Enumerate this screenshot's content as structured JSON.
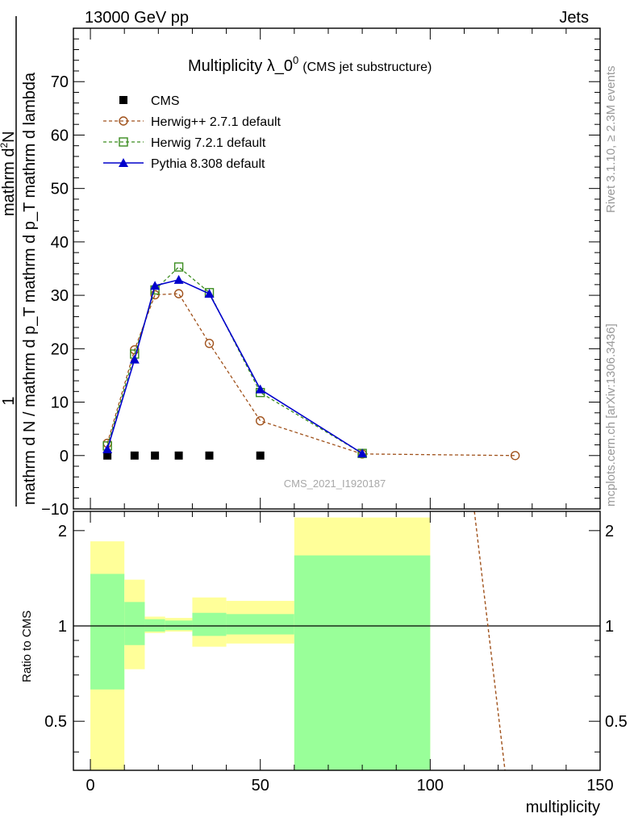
{
  "header": {
    "left": "13000 GeV pp",
    "right": "Jets"
  },
  "side_labels": {
    "rivet": "Rivet 3.1.10, ≥ 2.3M events",
    "mcplots": "mcplots.cern.ch [arXiv:1306.3436]"
  },
  "chart_data": {
    "type": "line",
    "title": "Multiplicity λ_0",
    "title_sup": "0",
    "title_suffix": "(CMS jet substructure)",
    "watermark": "CMS_2021_I1920187",
    "ylabel_top": "1",
    "ylabel_bottom": "mathrm d N / mathrm d p_T mathrm d p_T mathrm d lambda",
    "ylabel_num": "mathrm d",
    "ylabel_num_sup": "2",
    "ylabel_num_end": "N",
    "xlabel": "multiplicity",
    "ratio_ylabel": "Ratio to CMS",
    "xlim": [
      -5,
      150
    ],
    "ylim": [
      -10,
      80
    ],
    "ratio_ylim": [
      0.35,
      2.3
    ],
    "ratio_scale": "log",
    "x_ticks": [
      0,
      50,
      100,
      150
    ],
    "y_ticks": [
      -10,
      0,
      10,
      20,
      30,
      40,
      50,
      60,
      70
    ],
    "ratio_ticks": [
      0.5,
      1,
      2
    ],
    "legend_position": "top-left",
    "series": [
      {
        "name": "CMS",
        "color": "#000000",
        "marker": "filled-square",
        "line": "none",
        "points": [
          [
            5,
            0
          ],
          [
            13,
            0
          ],
          [
            19,
            0
          ],
          [
            26,
            0
          ],
          [
            35,
            0
          ],
          [
            50,
            0
          ]
        ]
      },
      {
        "name": "Herwig++ 2.7.1 default",
        "color": "#a0521c",
        "marker": "open-circle",
        "line": "dashed",
        "points": [
          [
            5,
            2.3
          ],
          [
            13,
            19.8
          ],
          [
            19,
            30.1
          ],
          [
            26,
            30.3
          ],
          [
            35,
            21.0
          ],
          [
            50,
            6.5
          ],
          [
            80,
            0.3
          ],
          [
            125,
            0.0
          ]
        ]
      },
      {
        "name": "Herwig 7.2.1 default",
        "color": "#3a8c1e",
        "marker": "open-square",
        "line": "dashed",
        "points": [
          [
            5,
            1.8
          ],
          [
            13,
            19.0
          ],
          [
            19,
            31.0
          ],
          [
            26,
            35.3
          ],
          [
            35,
            30.5
          ],
          [
            50,
            11.8
          ],
          [
            80,
            0.4
          ]
        ]
      },
      {
        "name": "Pythia 8.308 default",
        "color": "#0000cc",
        "marker": "filled-triangle",
        "line": "solid",
        "points": [
          [
            5,
            1.2
          ],
          [
            13,
            18.0
          ],
          [
            19,
            31.8
          ],
          [
            26,
            32.9
          ],
          [
            35,
            30.3
          ],
          [
            50,
            12.4
          ],
          [
            80,
            0.4
          ]
        ]
      }
    ],
    "ratio_bands": [
      {
        "x0": 0,
        "x1": 10,
        "yellow": [
          0.35,
          1.85
        ],
        "green": [
          0.63,
          1.46
        ]
      },
      {
        "x0": 10,
        "x1": 16,
        "yellow": [
          0.73,
          1.4
        ],
        "green": [
          0.87,
          1.19
        ]
      },
      {
        "x0": 16,
        "x1": 22,
        "yellow": [
          0.95,
          1.07
        ],
        "green": [
          0.96,
          1.05
        ]
      },
      {
        "x0": 22,
        "x1": 30,
        "yellow": [
          0.96,
          1.06
        ],
        "green": [
          0.97,
          1.04
        ]
      },
      {
        "x0": 30,
        "x1": 40,
        "yellow": [
          0.86,
          1.23
        ],
        "green": [
          0.93,
          1.1
        ]
      },
      {
        "x0": 40,
        "x1": 60,
        "yellow": [
          0.88,
          1.2
        ],
        "green": [
          0.94,
          1.09
        ]
      },
      {
        "x0": 60,
        "x1": 100,
        "yellow": [
          0.35,
          2.2
        ],
        "green": [
          0.35,
          1.67
        ]
      }
    ],
    "ratio_lines": [
      {
        "name": "Herwig++ 2.7.1 default",
        "color": "#a0521c",
        "dashed": true,
        "points": [
          [
            113,
            2.3
          ],
          [
            122,
            0.35
          ]
        ]
      }
    ]
  }
}
